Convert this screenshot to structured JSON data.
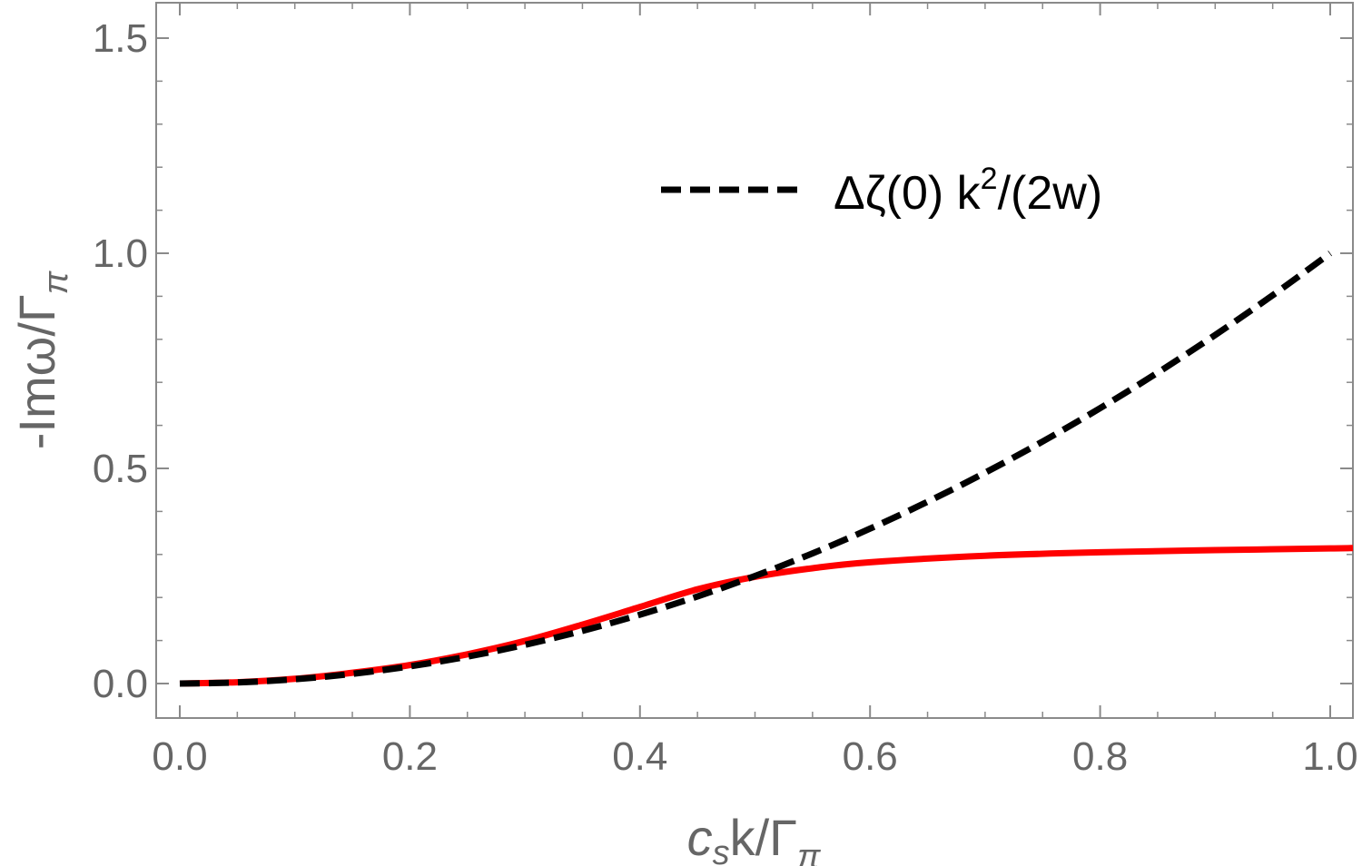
{
  "chart_data": {
    "type": "line",
    "xlim": [
      0.0,
      1.0
    ],
    "ylim": [
      -0.06,
      1.58
    ],
    "x_ticks": [
      "0.0",
      "0.2",
      "0.4",
      "0.6",
      "0.8",
      "1.0"
    ],
    "y_ticks": [
      "0.0",
      "0.5",
      "1.0",
      "1.5"
    ],
    "xlabel": {
      "main": "c",
      "sub1": "s",
      "mid": "k/Γ",
      "sub2": "π"
    },
    "ylabel": {
      "main": "-Imω/Γ",
      "sub": "π"
    },
    "legend": {
      "position": "top-right",
      "label": {
        "a": "Δζ(0) k",
        "sup": "2",
        "b": "/(2w)"
      }
    },
    "grid": false,
    "series": [
      {
        "style": "solid",
        "color": "#ff0000",
        "x": [
          0.0,
          0.05,
          0.1,
          0.15,
          0.2,
          0.25,
          0.3,
          0.35,
          0.4,
          0.45,
          0.5,
          0.55,
          0.6,
          0.7,
          0.8,
          0.9,
          1.0,
          1.02
        ],
        "y": [
          0.0,
          0.003,
          0.011,
          0.025,
          0.043,
          0.068,
          0.099,
          0.137,
          0.178,
          0.219,
          0.248,
          0.268,
          0.282,
          0.297,
          0.305,
          0.31,
          0.314,
          0.315
        ]
      },
      {
        "style": "dashed",
        "color": "#000000",
        "x": [
          0.0,
          0.05,
          0.1,
          0.15,
          0.2,
          0.25,
          0.3,
          0.35,
          0.4,
          0.45,
          0.5,
          0.55,
          0.6,
          0.65,
          0.7,
          0.75,
          0.8,
          0.85,
          0.9,
          0.95,
          1.0
        ],
        "y": [
          0.0,
          0.0025,
          0.01,
          0.0225,
          0.04,
          0.0625,
          0.09,
          0.1225,
          0.16,
          0.2025,
          0.25,
          0.3025,
          0.36,
          0.4225,
          0.49,
          0.5625,
          0.64,
          0.7225,
          0.81,
          0.9025,
          1.0
        ]
      }
    ]
  }
}
